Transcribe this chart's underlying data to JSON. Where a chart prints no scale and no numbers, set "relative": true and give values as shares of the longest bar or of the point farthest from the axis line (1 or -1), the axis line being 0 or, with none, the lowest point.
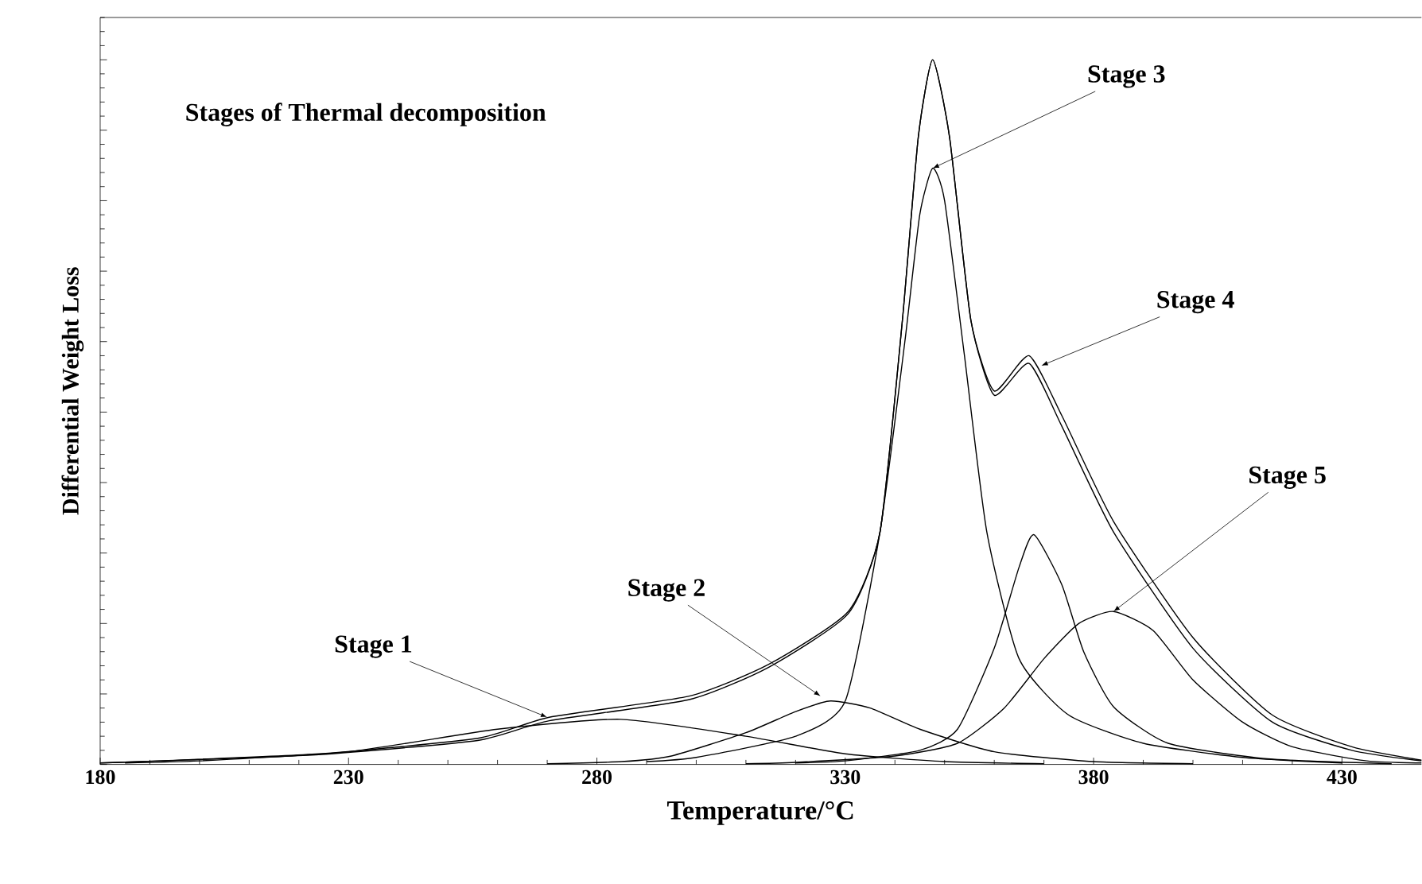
{
  "chart_data": {
    "type": "line",
    "relative": true,
    "xlabel": "Temperature/°C",
    "ylabel": "Differential Weight Loss",
    "xlim": [
      180,
      446
    ],
    "xticks": [
      180,
      230,
      280,
      330,
      380,
      430
    ],
    "grid": false,
    "marker": "none",
    "line_style": "solid",
    "series": [
      {
        "color": "#000000",
        "x": [
          180,
          192,
          224,
          256,
          270.4,
          298.6,
          314.6,
          330.6,
          337,
          341.5,
          344.7,
          347.6,
          351,
          355.3,
          360,
          367,
          373.6,
          384,
          400,
          416,
          432,
          446
        ],
        "values": [
          0.002,
          0.005,
          0.015,
          0.037,
          0.067,
          0.097,
          0.142,
          0.217,
          0.33,
          0.63,
          0.89,
          1.0,
          0.89,
          0.63,
          0.524,
          0.569,
          0.48,
          0.33,
          0.165,
          0.06,
          0.02,
          0.005
        ]
      },
      {
        "color": "#000000",
        "x": [
          180,
          192,
          224,
          256,
          270.4,
          298.6,
          314.6,
          330.6,
          337,
          341.5,
          344.7,
          347.6,
          351,
          355.3,
          360,
          367,
          373.6,
          384,
          400,
          416,
          432,
          446
        ],
        "values": [
          0.002,
          0.005,
          0.014,
          0.034,
          0.062,
          0.092,
          0.138,
          0.214,
          0.33,
          0.63,
          0.89,
          1.0,
          0.89,
          0.63,
          0.53,
          0.58,
          0.495,
          0.345,
          0.18,
          0.07,
          0.025,
          0.006
        ]
      },
      {
        "color": "#000000",
        "x": [
          185,
          200,
          230,
          260,
          284.8,
          310,
          330,
          350,
          370
        ],
        "values": [
          0.002,
          0.005,
          0.018,
          0.05,
          0.064,
          0.04,
          0.015,
          0.004,
          0.001
        ]
      },
      {
        "color": "#000000",
        "x": [
          270,
          285,
          295,
          310,
          320,
          327,
          335,
          345,
          360,
          380,
          400
        ],
        "values": [
          0.001,
          0.004,
          0.012,
          0.045,
          0.075,
          0.09,
          0.08,
          0.05,
          0.018,
          0.004,
          0.001
        ]
      },
      {
        "color": "#000000",
        "x": [
          290,
          300,
          320,
          330,
          337,
          342,
          345,
          347.6,
          350,
          354,
          358.5,
          365,
          375,
          390,
          410,
          430
        ],
        "values": [
          0.004,
          0.01,
          0.04,
          0.09,
          0.33,
          0.6,
          0.78,
          0.846,
          0.8,
          0.58,
          0.33,
          0.15,
          0.07,
          0.03,
          0.01,
          0.002
        ]
      },
      {
        "color": "#000000",
        "x": [
          320,
          330,
          345,
          352.6,
          360,
          365,
          368,
          373.6,
          378,
          384,
          395,
          415,
          440
        ],
        "values": [
          0.002,
          0.005,
          0.02,
          0.05,
          0.165,
          0.28,
          0.326,
          0.255,
          0.16,
          0.082,
          0.03,
          0.008,
          0.001
        ]
      },
      {
        "color": "#000000",
        "x": [
          310,
          320,
          340,
          352.6,
          362,
          370,
          377,
          384,
          392,
          400,
          410,
          420,
          435,
          446
        ],
        "values": [
          0.001,
          0.003,
          0.012,
          0.03,
          0.08,
          0.15,
          0.2,
          0.217,
          0.19,
          0.12,
          0.06,
          0.025,
          0.005,
          0.002
        ]
      }
    ],
    "annotations": [
      "Stages of Thermal decomposition",
      {
        "text": "Stage 1",
        "x": 270,
        "y": 0.067
      },
      {
        "text": "Stage 2",
        "x": 325,
        "y": 0.097
      },
      {
        "text": "Stage 3",
        "x": 347.6,
        "y": 0.846
      },
      {
        "text": "Stage 4",
        "x": 369.5,
        "y": 0.566
      },
      {
        "text": "Stage 5",
        "x": 384,
        "y": 0.217
      }
    ]
  }
}
